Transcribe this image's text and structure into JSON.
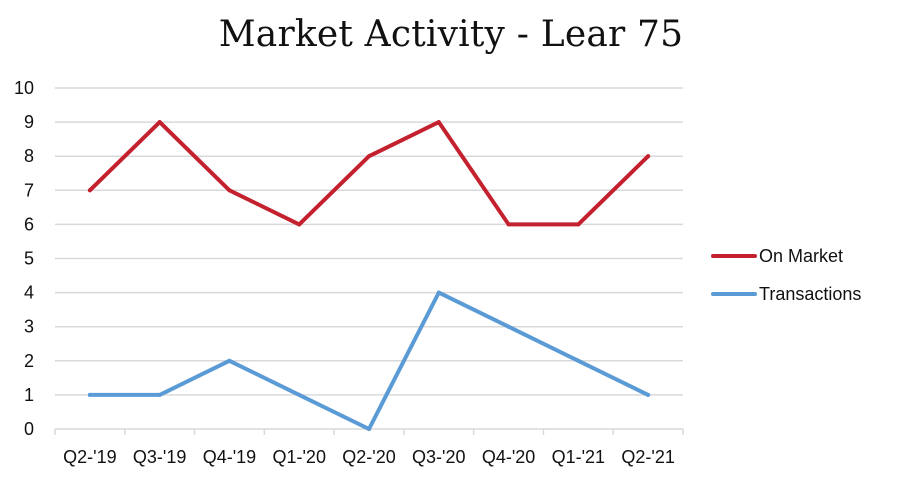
{
  "chart_data": {
    "type": "line",
    "title": "Market Activity - Lear 75",
    "xlabel": "",
    "ylabel": "",
    "categories": [
      "Q2-'19",
      "Q3-'19",
      "Q4-'19",
      "Q1-'20",
      "Q2-'20",
      "Q3-'20",
      "Q4-'20",
      "Q1-'21",
      "Q2-'21"
    ],
    "series": [
      {
        "name": "On Market",
        "values": [
          7,
          9,
          7,
          6,
          8,
          9,
          6,
          6,
          8
        ],
        "color": "#C4212E"
      },
      {
        "name": "Transactions",
        "values": [
          1,
          1,
          2,
          1,
          0,
          4,
          3,
          2,
          1
        ],
        "color": "#5B9BD5"
      }
    ],
    "ylim": [
      0,
      10
    ],
    "yticks": [
      0,
      1,
      2,
      3,
      4,
      5,
      6,
      7,
      8,
      9,
      10
    ],
    "grid": true,
    "grid_color": "#D9D9D9",
    "legend_position": "right"
  }
}
